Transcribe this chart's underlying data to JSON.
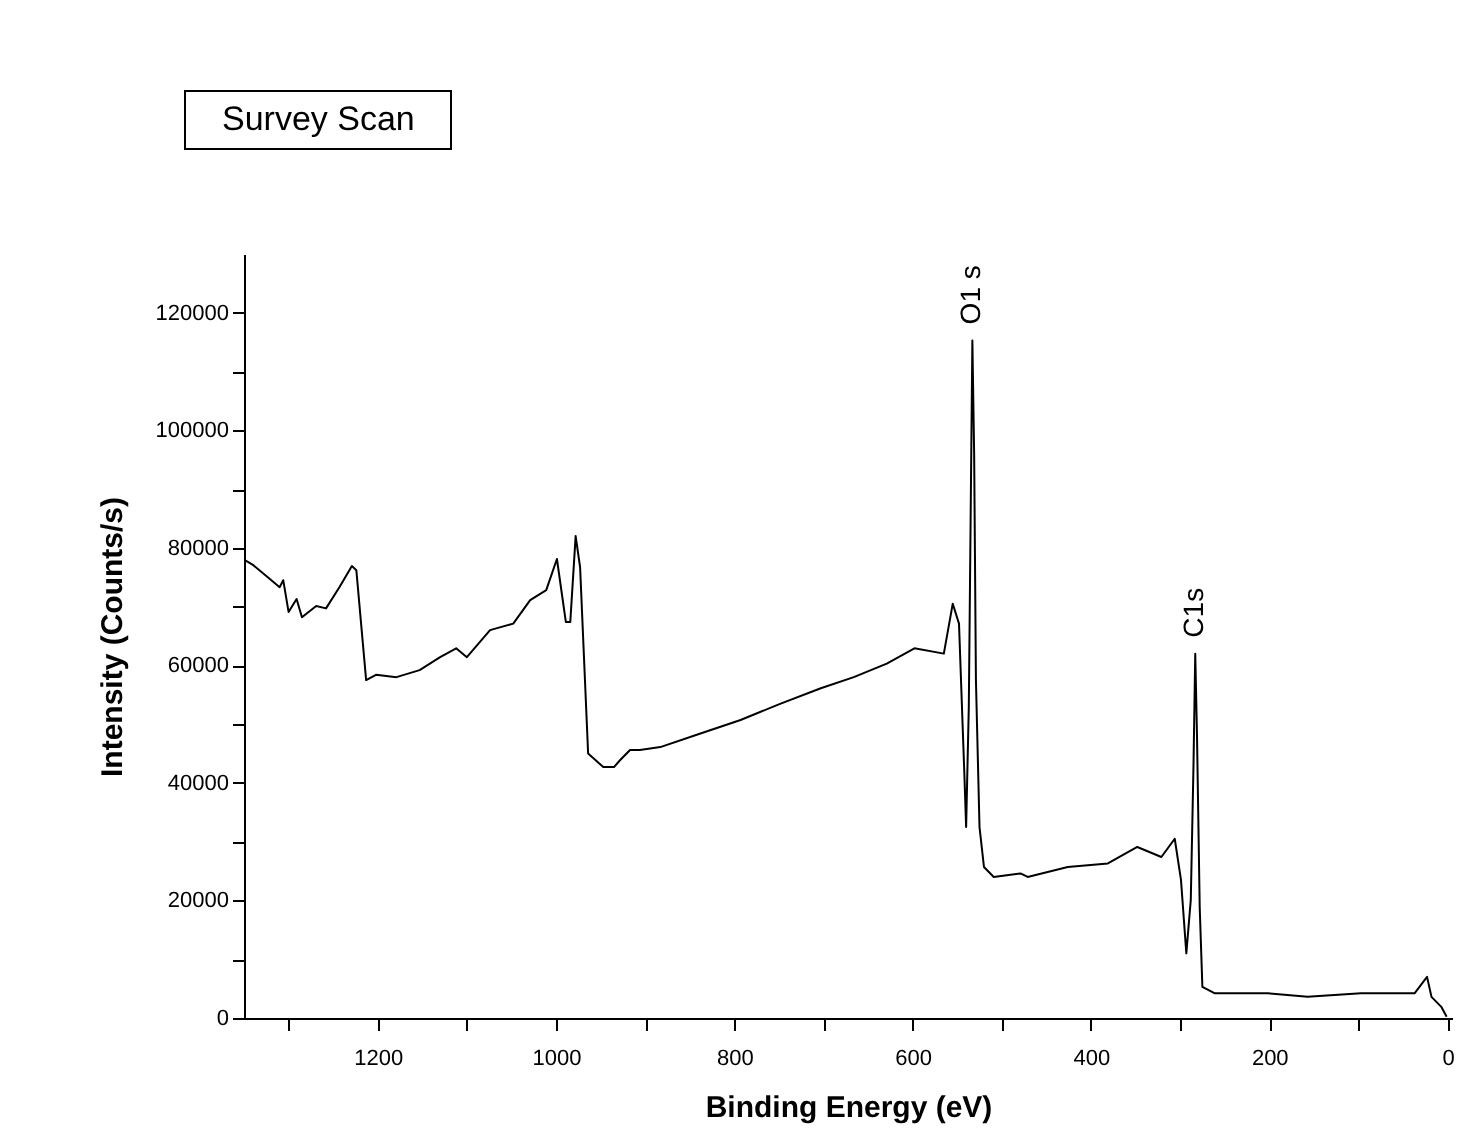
{
  "chart_data": {
    "type": "line",
    "title": "Survey Scan",
    "xlabel": "Binding Energy (eV)",
    "ylabel": "Intensity (Counts/s)",
    "xlim": [
      1350,
      -5
    ],
    "ylim": [
      0,
      130000
    ],
    "xticks": [
      {
        "value": 1300,
        "label": null
      },
      1200,
      {
        "value": 1100,
        "label": null
      },
      1000,
      {
        "value": 900,
        "label": null
      },
      800,
      {
        "value": 700,
        "label": null
      },
      600,
      {
        "value": 500,
        "label": null
      },
      400,
      {
        "value": 300,
        "label": null
      },
      200,
      {
        "value": 100,
        "label": null
      },
      0
    ],
    "yticks": [
      0,
      {
        "value": 10000,
        "label": null
      },
      20000,
      {
        "value": 30000,
        "label": null
      },
      40000,
      {
        "value": 50000,
        "label": null
      },
      60000,
      {
        "value": 70000,
        "label": null
      },
      80000,
      {
        "value": 90000,
        "label": null
      },
      100000,
      {
        "value": 110000,
        "label": null
      },
      120000
    ],
    "grid": false,
    "legend": false,
    "marker": "none",
    "line_style": "solid",
    "annotations": [
      {
        "text": "O1 s",
        "x": 533,
        "y": 115300
      },
      {
        "text": "C1s",
        "x": 283,
        "y": 62000
      }
    ],
    "series": [
      {
        "color": "#000000",
        "x": [
          1349,
          1340,
          1325,
          1310,
          1306,
          1300,
          1291,
          1285,
          1269,
          1258,
          1243,
          1229,
          1224,
          1213,
          1202,
          1179,
          1153,
          1130,
          1112,
          1100,
          1074,
          1048,
          1029,
          1011,
          999,
          989,
          984,
          978,
          973,
          964,
          947,
          935,
          928,
          917,
          906,
          883,
          838,
          793,
          748,
          703,
          666,
          629,
          598,
          565,
          555,
          548,
          542,
          540,
          537,
          533,
          531,
          529,
          525,
          520,
          509,
          479,
          471,
          426,
          381,
          348,
          321,
          306,
          299,
          293,
          288,
          285,
          283,
          281,
          278,
          275,
          261,
          201,
          157,
          97,
          37,
          23,
          18,
          7,
          1
        ],
        "values": [
          77900,
          77100,
          75200,
          73300,
          74500,
          69100,
          71300,
          68200,
          70100,
          69700,
          73300,
          76900,
          76200,
          57500,
          58400,
          58000,
          59200,
          61400,
          62900,
          61400,
          66000,
          67100,
          71100,
          72800,
          78100,
          67400,
          67400,
          82000,
          76700,
          45000,
          42700,
          42700,
          43900,
          45600,
          45600,
          46100,
          48400,
          50700,
          53500,
          56100,
          58000,
          60300,
          62900,
          62000,
          70500,
          67100,
          41600,
          32500,
          52900,
          115300,
          96000,
          57500,
          32500,
          25700,
          24000,
          24600,
          24000,
          25700,
          26300,
          29100,
          27400,
          30500,
          23500,
          11000,
          20100,
          42700,
          62000,
          47800,
          18900,
          5300,
          4200,
          4200,
          3600,
          4200,
          4200,
          7000,
          3600,
          1900,
          200
        ]
      }
    ]
  }
}
